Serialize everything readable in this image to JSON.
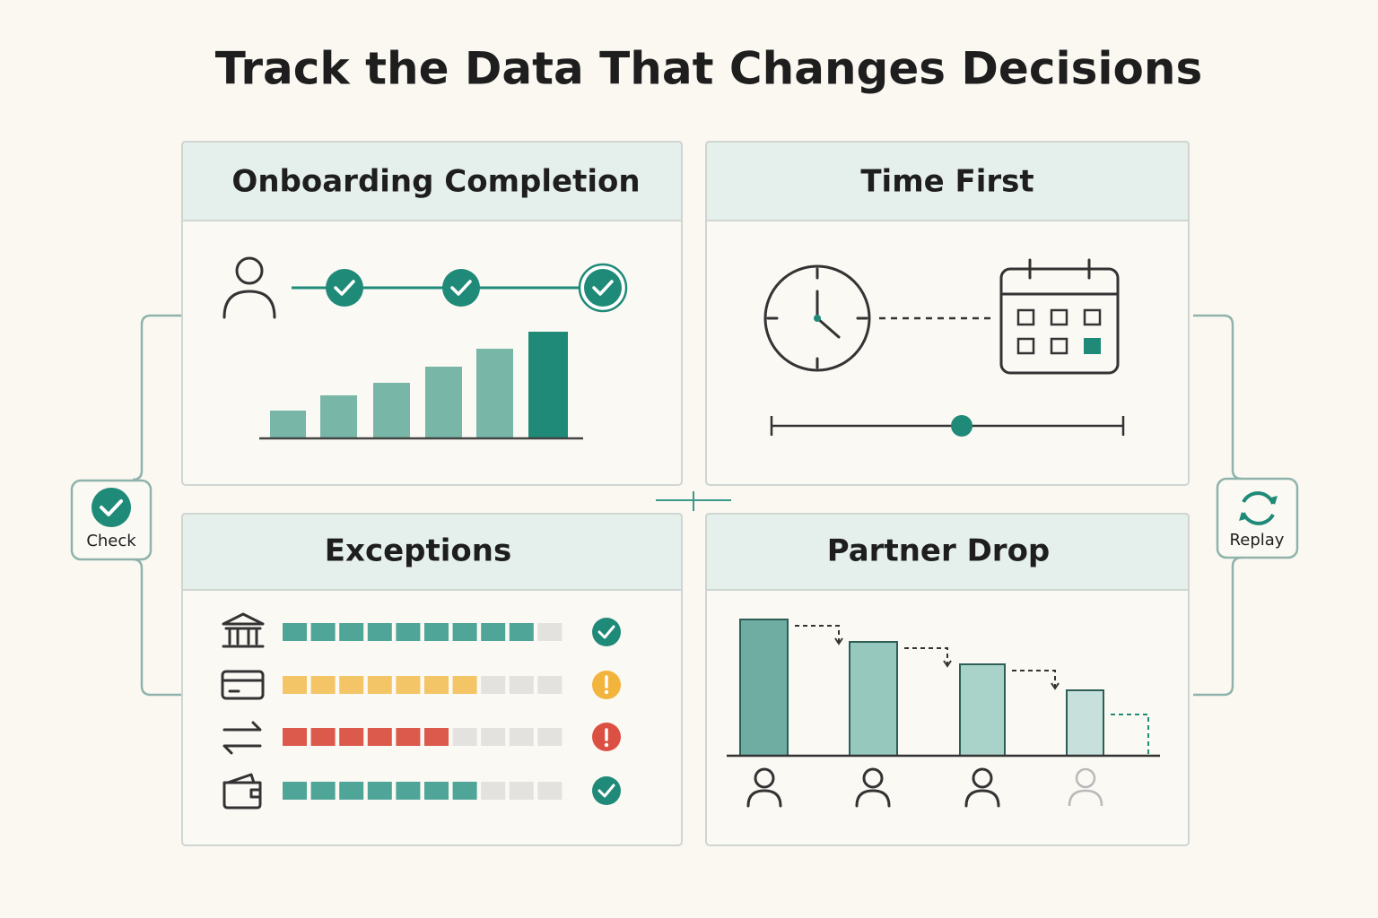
{
  "header": {
    "title": "Track the Data That Changes Decisions"
  },
  "panels": [
    {
      "title": "Onboarding Completion"
    },
    {
      "title": "Time First"
    },
    {
      "title": "Exceptions"
    },
    {
      "title": "Partner Drop"
    }
  ],
  "side_badges": [
    {
      "label": "Check"
    },
    {
      "label": "Replay"
    }
  ]
}
